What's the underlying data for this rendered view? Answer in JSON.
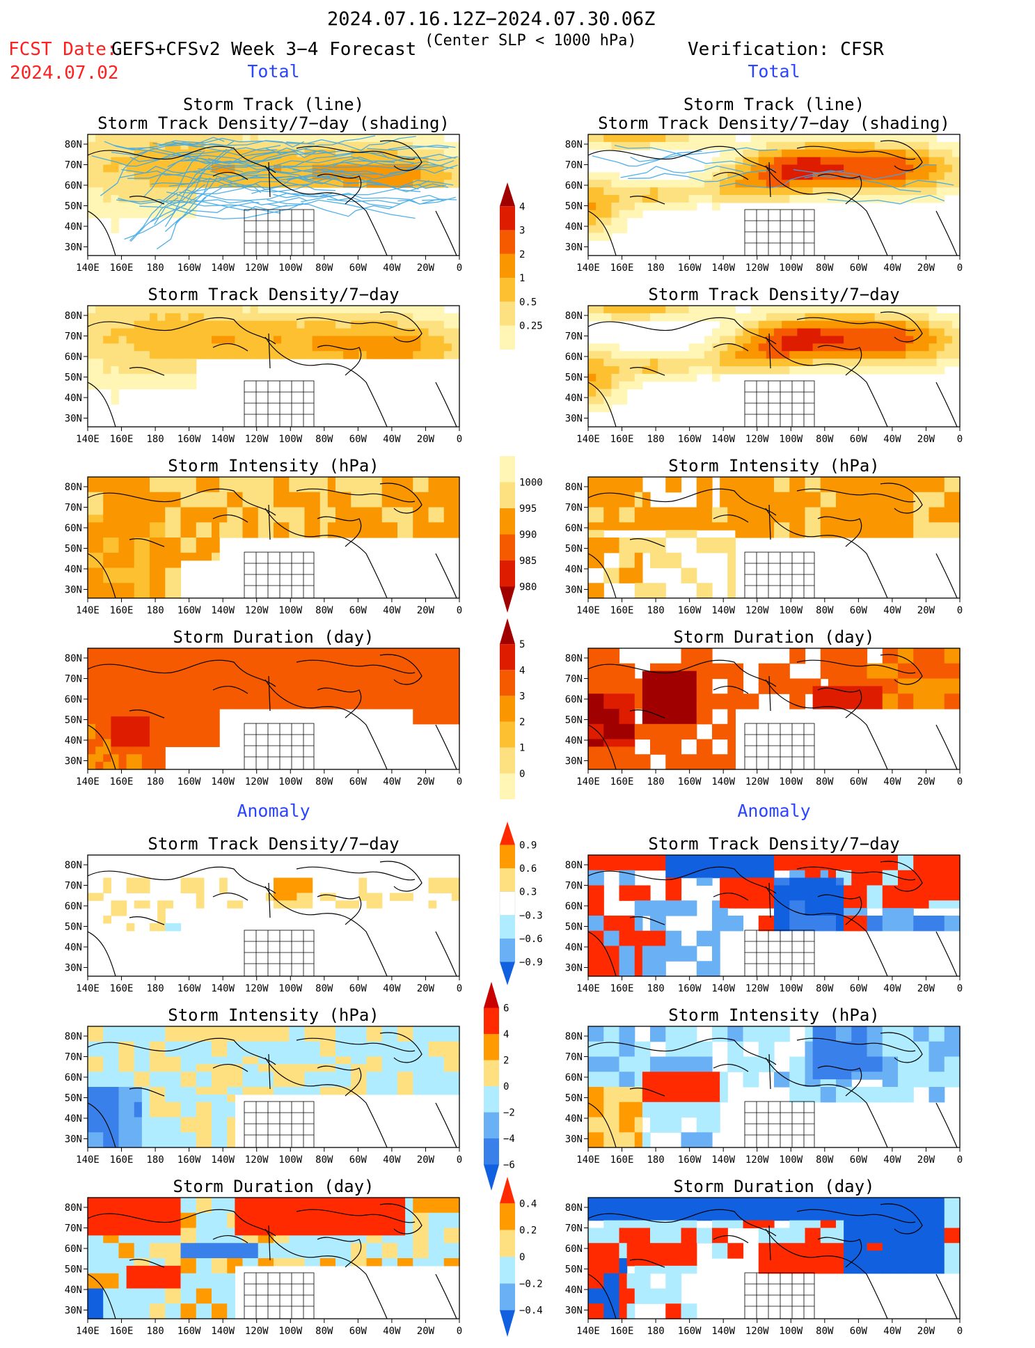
{
  "header": {
    "period": "2024.07.16.12Z−2024.07.30.06Z",
    "fcst_label": "FCST Date:",
    "fcst_date": "2024.07.02",
    "model": "GEFS+CFSv2 Week 3−4 Forecast",
    "criterion": "(Center SLP < 1000 hPa)",
    "verification": "Verification: CFSR"
  },
  "sections": {
    "total": "Total",
    "anomaly": "Anomaly"
  },
  "axes": {
    "lat_labels": [
      "80N",
      "70N",
      "60N",
      "50N",
      "40N",
      "30N"
    ],
    "lon_labels": [
      "140E",
      "160E",
      "180",
      "160W",
      "140W",
      "120W",
      "100W",
      "80W",
      "60W",
      "40W",
      "20W",
      "0"
    ]
  },
  "panels": [
    {
      "id": "fc-track",
      "title_lines": [
        "Storm Track (line)",
        "Storm Track Density/7−day (shading)"
      ],
      "pattern": "fc_density",
      "tracks": true
    },
    {
      "id": "obs-track",
      "title_lines": [
        "Storm Track (line)",
        "Storm Track Density/7−day (shading)"
      ],
      "pattern": "obs_density",
      "tracks": true
    },
    {
      "id": "fc-density",
      "title_lines": [
        "Storm Track Density/7−day"
      ],
      "pattern": "fc_density",
      "tracks": false
    },
    {
      "id": "obs-density",
      "title_lines": [
        "Storm Track Density/7−day"
      ],
      "pattern": "obs_density",
      "tracks": false
    },
    {
      "id": "fc-intensity",
      "title_lines": [
        "Storm Intensity (hPa)"
      ],
      "pattern": "fc_intensity",
      "tracks": false
    },
    {
      "id": "obs-intensity",
      "title_lines": [
        "Storm Intensity (hPa)"
      ],
      "pattern": "obs_intensity",
      "tracks": false
    },
    {
      "id": "fc-duration",
      "title_lines": [
        "Storm Duration (day)"
      ],
      "pattern": "fc_duration",
      "tracks": false
    },
    {
      "id": "obs-duration",
      "title_lines": [
        "Storm Duration (day)"
      ],
      "pattern": "obs_duration",
      "tracks": false
    },
    {
      "id": "fc-density-anom",
      "title_lines": [
        "Storm Track Density/7−day"
      ],
      "pattern": "fc_density_anom",
      "tracks": false
    },
    {
      "id": "obs-density-anom",
      "title_lines": [
        "Storm Track Density/7−day"
      ],
      "pattern": "obs_density_anom",
      "tracks": false
    },
    {
      "id": "fc-intensity-anom",
      "title_lines": [
        "Storm Intensity (hPa)"
      ],
      "pattern": "fc_intensity_anom",
      "tracks": false
    },
    {
      "id": "obs-intensity-anom",
      "title_lines": [
        "Storm Intensity (hPa)"
      ],
      "pattern": "obs_intensity_anom",
      "tracks": false
    },
    {
      "id": "fc-duration-anom",
      "title_lines": [
        "Storm Duration (day)"
      ],
      "pattern": "fc_duration_anom",
      "tracks": false
    },
    {
      "id": "obs-duration-anom",
      "title_lines": [
        "Storm Duration (day)"
      ],
      "pattern": "obs_duration_anom",
      "tracks": false
    }
  ],
  "colorbars": [
    {
      "id": "cb-density",
      "labels": [
        "4",
        "3",
        "2",
        "1",
        "0.5",
        "0.25"
      ],
      "colors": [
        "#a00000",
        "#dd1c00",
        "#f55a00",
        "#fa9600",
        "#fcc030",
        "#fde080",
        "#fff5b5"
      ],
      "shape": "top"
    },
    {
      "id": "cb-intensity",
      "labels": [
        "1000",
        "995",
        "990",
        "985",
        "980"
      ],
      "colors": [
        "#fff5b5",
        "#fde080",
        "#fa9600",
        "#f55a00",
        "#dd1c00",
        "#a00000"
      ],
      "shape": "bottom"
    },
    {
      "id": "cb-duration",
      "labels": [
        "5",
        "4",
        "3",
        "2",
        "1",
        "0"
      ],
      "colors": [
        "#a00000",
        "#dd1c00",
        "#f55a00",
        "#fa9600",
        "#fcc030",
        "#fde080",
        "#fff5b5"
      ],
      "shape": "top"
    },
    {
      "id": "cb-density-anom",
      "labels": [
        "0.9",
        "0.6",
        "0.3",
        "−0.3",
        "−0.6",
        "−0.9"
      ],
      "colors": [
        "#ff2a00",
        "#ff9a00",
        "#ffe080",
        "#ffffff",
        "#b0ecff",
        "#6ab0f5",
        "#1060e0"
      ],
      "shape": "both"
    },
    {
      "id": "cb-intensity-anom",
      "labels": [
        "6",
        "4",
        "2",
        "0",
        "−2",
        "−4",
        "−6"
      ],
      "colors": [
        "#c80000",
        "#ff2a00",
        "#ff9a00",
        "#ffe080",
        "#b0ecff",
        "#6ab0f5",
        "#3a80ea",
        "#1060e0"
      ],
      "shape": "both"
    },
    {
      "id": "cb-duration-anom",
      "labels": [
        "0.4",
        "0.2",
        "0",
        "−0.2",
        "−0.4"
      ],
      "colors": [
        "#ff2a00",
        "#ff9a00",
        "#ffe080",
        "#b0ecff",
        "#6ab0f5",
        "#1060e0"
      ],
      "shape": "both"
    }
  ]
}
